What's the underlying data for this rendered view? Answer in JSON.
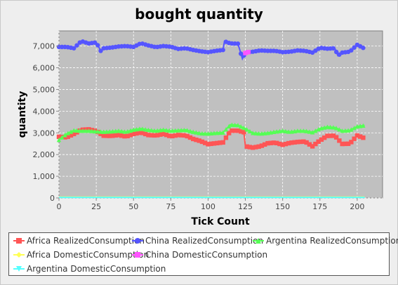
{
  "chart_data": {
    "type": "line",
    "title": "bought quantity",
    "xlabel": "Tick Count",
    "ylabel": "quantity",
    "xlim": [
      0,
      217
    ],
    "ylim": [
      0,
      7700
    ],
    "x_ticks": [
      0,
      25,
      50,
      75,
      100,
      125,
      150,
      175,
      200
    ],
    "y_ticks": [
      0,
      1000,
      2000,
      3000,
      4000,
      5000,
      6000,
      7000
    ],
    "y_tick_labels": [
      "0",
      "1,000",
      "2,000",
      "3,000",
      "4,000",
      "5,000",
      "6,000",
      "7,000"
    ],
    "grid": true,
    "plot_background": "#c0c0c0",
    "legend_position": "bottom",
    "series": [
      {
        "name": "Africa RealizedConsumption",
        "color": "#ff5555",
        "marker": "square",
        "points": [
          [
            0,
            2820
          ],
          [
            5,
            2790
          ],
          [
            10,
            2950
          ],
          [
            15,
            3140
          ],
          [
            20,
            3160
          ],
          [
            25,
            3080
          ],
          [
            30,
            2870
          ],
          [
            35,
            2860
          ],
          [
            40,
            2900
          ],
          [
            45,
            2830
          ],
          [
            50,
            2950
          ],
          [
            55,
            3020
          ],
          [
            60,
            2900
          ],
          [
            65,
            2880
          ],
          [
            70,
            2950
          ],
          [
            75,
            2840
          ],
          [
            80,
            2900
          ],
          [
            85,
            2880
          ],
          [
            90,
            2720
          ],
          [
            95,
            2620
          ],
          [
            100,
            2480
          ],
          [
            105,
            2520
          ],
          [
            110,
            2560
          ],
          [
            115,
            3100
          ],
          [
            120,
            3100
          ],
          [
            124,
            3030
          ],
          [
            125,
            2380
          ],
          [
            130,
            2320
          ],
          [
            135,
            2380
          ],
          [
            140,
            2520
          ],
          [
            145,
            2550
          ],
          [
            150,
            2450
          ],
          [
            155,
            2540
          ],
          [
            160,
            2580
          ],
          [
            165,
            2600
          ],
          [
            170,
            2380
          ],
          [
            175,
            2650
          ],
          [
            180,
            2860
          ],
          [
            185,
            2870
          ],
          [
            190,
            2490
          ],
          [
            195,
            2500
          ],
          [
            200,
            2880
          ],
          [
            205,
            2750
          ]
        ]
      },
      {
        "name": "China RealizedConsumption",
        "color": "#5555ff",
        "marker": "circle",
        "points": [
          [
            0,
            6960
          ],
          [
            5,
            6960
          ],
          [
            10,
            6900
          ],
          [
            15,
            7230
          ],
          [
            20,
            7120
          ],
          [
            25,
            7170
          ],
          [
            28,
            6780
          ],
          [
            30,
            6900
          ],
          [
            35,
            6930
          ],
          [
            40,
            6980
          ],
          [
            45,
            7000
          ],
          [
            50,
            6960
          ],
          [
            55,
            7130
          ],
          [
            60,
            7030
          ],
          [
            65,
            6950
          ],
          [
            70,
            7000
          ],
          [
            75,
            6970
          ],
          [
            80,
            6870
          ],
          [
            85,
            6900
          ],
          [
            90,
            6820
          ],
          [
            95,
            6760
          ],
          [
            100,
            6720
          ],
          [
            105,
            6780
          ],
          [
            110,
            6820
          ],
          [
            111,
            7220
          ],
          [
            115,
            7120
          ],
          [
            120,
            7110
          ],
          [
            123,
            6420
          ],
          [
            125,
            6700
          ],
          [
            130,
            6740
          ],
          [
            135,
            6800
          ],
          [
            140,
            6780
          ],
          [
            145,
            6780
          ],
          [
            150,
            6720
          ],
          [
            155,
            6740
          ],
          [
            160,
            6800
          ],
          [
            165,
            6780
          ],
          [
            170,
            6700
          ],
          [
            175,
            6920
          ],
          [
            180,
            6880
          ],
          [
            185,
            6900
          ],
          [
            187,
            6560
          ],
          [
            190,
            6700
          ],
          [
            195,
            6740
          ],
          [
            200,
            7060
          ],
          [
            205,
            6880
          ]
        ]
      },
      {
        "name": "Argentina RealizedConsumption",
        "color": "#55ff55",
        "marker": "triangle-up",
        "points": [
          [
            0,
            2680
          ],
          [
            5,
            2960
          ],
          [
            10,
            3120
          ],
          [
            15,
            3100
          ],
          [
            20,
            3100
          ],
          [
            25,
            3070
          ],
          [
            30,
            3050
          ],
          [
            35,
            3070
          ],
          [
            40,
            3100
          ],
          [
            45,
            3050
          ],
          [
            50,
            3150
          ],
          [
            55,
            3200
          ],
          [
            60,
            3140
          ],
          [
            65,
            3100
          ],
          [
            70,
            3150
          ],
          [
            75,
            3100
          ],
          [
            80,
            3120
          ],
          [
            85,
            3140
          ],
          [
            90,
            3050
          ],
          [
            95,
            2980
          ],
          [
            100,
            2970
          ],
          [
            105,
            3000
          ],
          [
            110,
            3020
          ],
          [
            115,
            3380
          ],
          [
            120,
            3360
          ],
          [
            125,
            3200
          ],
          [
            130,
            3000
          ],
          [
            135,
            2970
          ],
          [
            140,
            3000
          ],
          [
            145,
            3060
          ],
          [
            150,
            3100
          ],
          [
            155,
            3050
          ],
          [
            160,
            3100
          ],
          [
            165,
            3100
          ],
          [
            170,
            3030
          ],
          [
            175,
            3200
          ],
          [
            180,
            3280
          ],
          [
            185,
            3250
          ],
          [
            190,
            3100
          ],
          [
            195,
            3120
          ],
          [
            200,
            3300
          ],
          [
            205,
            3350
          ]
        ]
      },
      {
        "name": "Africa DomesticConsumption",
        "color": "#ffff55",
        "marker": "diamond",
        "points": [
          [
            0,
            40
          ],
          [
            205,
            40
          ]
        ]
      },
      {
        "name": "China DomesticConsumption",
        "color": "#ff55ff",
        "marker": "square",
        "points": [
          [
            125,
            6680
          ],
          [
            127,
            6720
          ]
        ]
      },
      {
        "name": "Argentina DomesticConsumption",
        "color": "#55ffff",
        "marker": "triangle-down",
        "points": [
          [
            0,
            25
          ],
          [
            205,
            25
          ]
        ]
      }
    ]
  }
}
